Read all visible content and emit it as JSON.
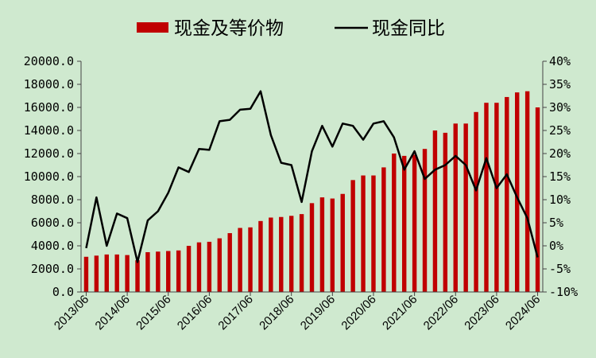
{
  "chart_data": {
    "type": "bar+line",
    "title": "",
    "legend": {
      "placement": "top-center"
    },
    "colors": {
      "bar": "#c00000",
      "line": "#000000",
      "background": "#cfe9cf"
    },
    "x_tick_labels": [
      "2013/06",
      "2014/06",
      "2015/06",
      "2016/06",
      "2017/06",
      "2018/06",
      "2019/06",
      "2020/06",
      "2021/06",
      "2022/06",
      "2023/06",
      "2024/06"
    ],
    "left_axis": {
      "ylim": [
        0,
        20000
      ],
      "ticks": [
        0,
        2000,
        4000,
        6000,
        8000,
        10000,
        12000,
        14000,
        16000,
        18000,
        20000
      ],
      "tick_labels": [
        "0.0",
        "2000.0",
        "4000.0",
        "6000.0",
        "8000.0",
        "10000.0",
        "12000.0",
        "14000.0",
        "16000.0",
        "18000.0",
        "20000.0"
      ]
    },
    "right_axis": {
      "ylim": [
        -10,
        40
      ],
      "ticks": [
        -10,
        -5,
        0,
        5,
        10,
        15,
        20,
        25,
        30,
        35,
        40
      ],
      "tick_labels": [
        "-10%",
        "-5%",
        "0%",
        "5%",
        "10%",
        "15%",
        "20%",
        "25%",
        "30%",
        "35%",
        "40%"
      ]
    },
    "grid": false,
    "series": [
      {
        "name": "现金及等价物",
        "type": "bar",
        "axis": "left",
        "values": [
          3050,
          3150,
          3250,
          3250,
          3200,
          2750,
          3450,
          3500,
          3550,
          3600,
          4000,
          4300,
          4350,
          4650,
          5100,
          5550,
          5600,
          6150,
          6450,
          6500,
          6600,
          6750,
          7700,
          8200,
          8100,
          8500,
          9700,
          10100,
          10100,
          10800,
          12000,
          11800,
          11900,
          12400,
          14000,
          13800,
          14600,
          14600,
          15600,
          16400,
          16400,
          16900,
          17300,
          17400,
          16000
        ]
      },
      {
        "name": "现金同比",
        "type": "line",
        "axis": "right",
        "unit": "%",
        "values": [
          -0.5,
          10.5,
          0,
          7,
          6,
          -3.5,
          5.5,
          7.5,
          11.5,
          17,
          16,
          21,
          20.8,
          27,
          27.3,
          29.5,
          29.7,
          33.5,
          24,
          18,
          17.5,
          9.5,
          20.5,
          26,
          21.5,
          26.5,
          26,
          23,
          26.5,
          27,
          23.5,
          16.5,
          20.5,
          14.5,
          16.5,
          17.5,
          19.5,
          17.5,
          12,
          19,
          12.5,
          15.5,
          10.5,
          6,
          -2.5
        ]
      }
    ]
  }
}
